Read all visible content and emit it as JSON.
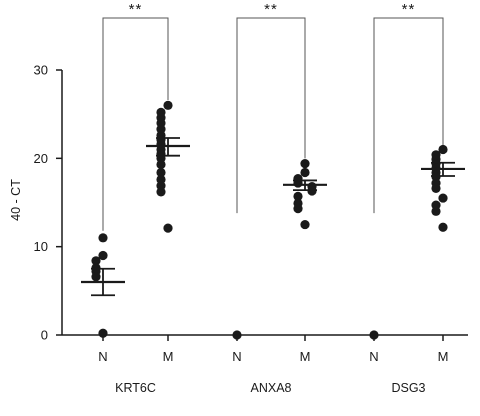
{
  "chart_data": {
    "type": "scatter",
    "title": "",
    "xlabel": "",
    "ylabel": "40 - CT",
    "ylim": [
      0,
      30
    ],
    "yticks": [
      "0",
      "10",
      "20",
      "30"
    ],
    "grid": false,
    "legend": "none",
    "point_color": "#1a1a1a",
    "categories": [
      "N",
      "M",
      "N",
      "M",
      "N",
      "M"
    ],
    "groups": [
      {
        "gene": "KRT6C",
        "significance": "**",
        "series": [
          {
            "category": "N",
            "mean": 6.0,
            "sem_low": 4.5,
            "sem_high": 7.5,
            "points": [
              11,
              9,
              8.4,
              7.6,
              7.2,
              6.6,
              0.2
            ]
          },
          {
            "category": "M",
            "mean": 21.4,
            "sem_low": 20.3,
            "sem_high": 22.3,
            "points": [
              26,
              25.2,
              24.6,
              24,
              23.3,
              22.6,
              22.1,
              21.6,
              21,
              20.5,
              20,
              19.3,
              18.4,
              17.6,
              16.9,
              16.2,
              12.1
            ]
          }
        ]
      },
      {
        "gene": "ANXA8",
        "significance": "**",
        "series": [
          {
            "category": "N",
            "mean": null,
            "sem_low": null,
            "sem_high": null,
            "points": [
              0
            ]
          },
          {
            "category": "M",
            "mean": 17.0,
            "sem_low": 16.4,
            "sem_high": 17.5,
            "points": [
              19.4,
              18.4,
              17.7,
              17.2,
              16.8,
              16.3,
              15.7,
              14.9,
              14.3,
              12.5
            ]
          }
        ]
      },
      {
        "gene": "DSG3",
        "significance": "**",
        "series": [
          {
            "category": "N",
            "mean": null,
            "sem_low": null,
            "sem_high": null,
            "points": [
              0
            ]
          },
          {
            "category": "M",
            "mean": 18.8,
            "sem_low": 18.0,
            "sem_high": 19.5,
            "points": [
              21,
              20.4,
              19.9,
              19.4,
              18.9,
              18.4,
              17.9,
              17.2,
              16.6,
              15.5,
              14.7,
              14.0,
              12.2
            ]
          }
        ]
      }
    ]
  }
}
